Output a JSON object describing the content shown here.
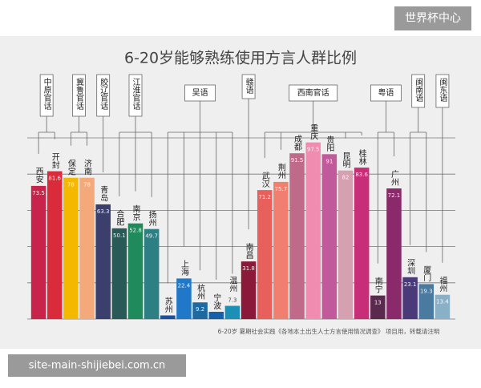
{
  "watermark": "世界杯中心",
  "footer_url": "site-main-shijiebei.com.cn",
  "chart_data": {
    "type": "bar",
    "title": "6-20岁能够熟练使用方言人群比例",
    "source": "6-20岁 暑期社会实践《各地本土出生人士方言使用情况调查》 项目用，转载请注明",
    "categories": [
      "西安",
      "开封",
      "保定",
      "济南",
      "青岛",
      "合肥",
      "南京",
      "扬州",
      "苏州",
      "上海",
      "杭州",
      "宁波",
      "温州",
      "南昌",
      "武汉",
      "荆州",
      "成都",
      "重庆",
      "贵阳",
      "昆明",
      "桂林",
      "南宁",
      "广州",
      "深圳",
      "厦门",
      "福州"
    ],
    "values": [
      73.5,
      81.6,
      78,
      78,
      63.3,
      50.1,
      52.8,
      49.7,
      2,
      22.4,
      9.2,
      4,
      7.3,
      31.8,
      71.2,
      75.7,
      91.5,
      97.5,
      91,
      82,
      83.6,
      13,
      72.1,
      23.1,
      19.3,
      13.4
    ],
    "colors": [
      "#c8234a",
      "#d92b3a",
      "#f5b800",
      "#f4a97a",
      "#3b3f6b",
      "#2a5a57",
      "#1f8a5b",
      "#2c7f82",
      "#1c4f9c",
      "#1f78c8",
      "#1e6aa0",
      "#1560a8",
      "#1b8fb5",
      "#8b1a3a",
      "#e8605c",
      "#f07f70",
      "#c06a8a",
      "#f08cb0",
      "#c05a9a",
      "#d5a0b0",
      "#c82d78",
      "#5a2a4e",
      "#8a2a6a",
      "#4a3a7a",
      "#4a7aa0",
      "#8ab0c8"
    ],
    "labeled": [
      true,
      true,
      true,
      true,
      true,
      true,
      true,
      true,
      false,
      true,
      true,
      false,
      true,
      true,
      true,
      true,
      true,
      true,
      true,
      true,
      true,
      true,
      true,
      true,
      true,
      true
    ],
    "ylim": [
      0,
      100
    ],
    "yticks": [
      20,
      40,
      60,
      80,
      100
    ],
    "grid": true,
    "groups": [
      {
        "label": "中原官话",
        "members": [
          "西安",
          "开封"
        ],
        "vertical": true
      },
      {
        "label": "冀鲁官话",
        "members": [
          "保定",
          "济南"
        ],
        "vertical": true
      },
      {
        "label": "胶辽官话",
        "members": [
          "青岛"
        ],
        "vertical": true
      },
      {
        "label": "江淮官话",
        "members": [
          "合肥",
          "南京",
          "扬州"
        ],
        "vertical": true
      },
      {
        "label": "吴语",
        "members": [
          "苏州",
          "上海",
          "杭州",
          "宁波",
          "温州"
        ],
        "vertical": false
      },
      {
        "label": "赣语",
        "members": [
          "南昌"
        ],
        "vertical": true
      },
      {
        "label": "西南官话",
        "members": [
          "武汉",
          "荆州",
          "成都",
          "重庆",
          "贵阳",
          "昆明",
          "桂林"
        ],
        "vertical": false
      },
      {
        "label": "粤语",
        "members": [
          "南宁",
          "广州"
        ],
        "vertical": false
      },
      {
        "label": "闽南语",
        "members": [
          "深圳",
          "厦门"
        ],
        "vertical": true
      },
      {
        "label": "闽东语",
        "members": [
          "福州"
        ],
        "vertical": true
      }
    ]
  }
}
